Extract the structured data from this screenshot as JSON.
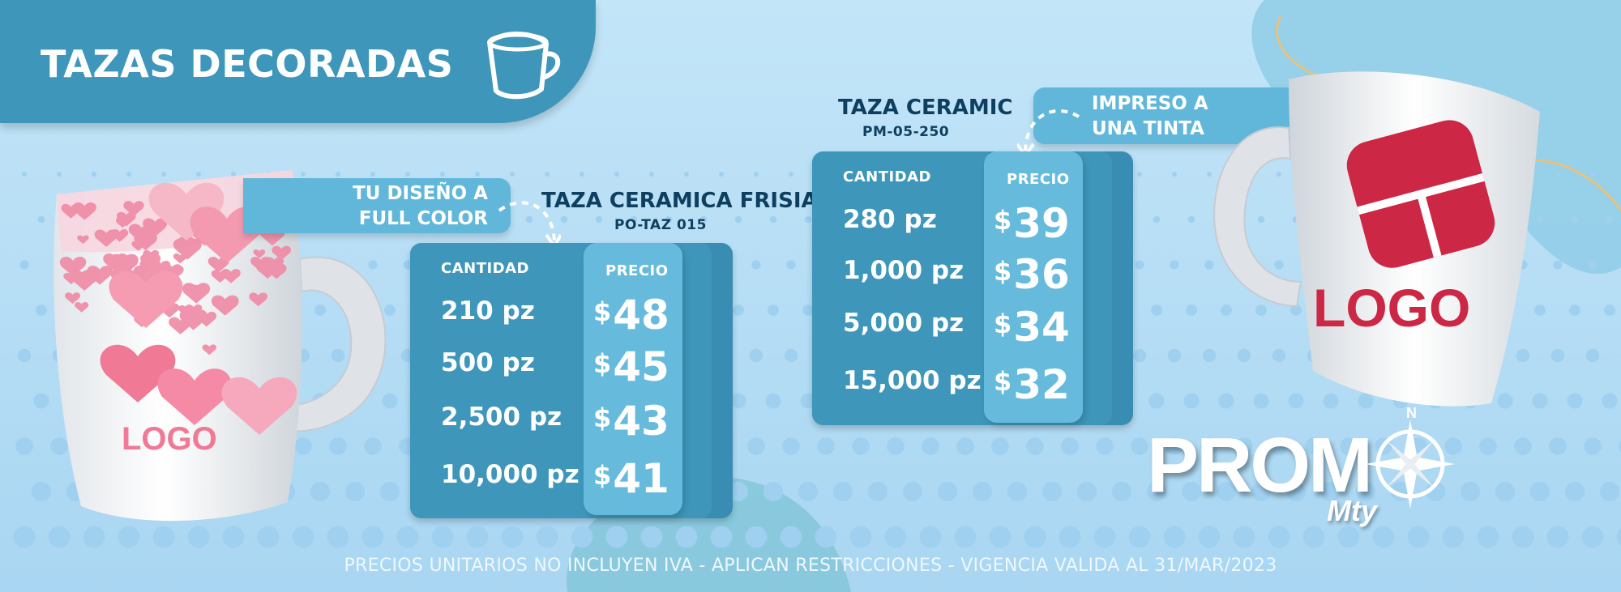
{
  "header": {
    "title": "TAZAS DECORADAS",
    "icon": "mug-icon"
  },
  "colors": {
    "background": "#b7def5",
    "band": "#3e97bb",
    "card": "#3e97bb",
    "price_column": "#66bbdd",
    "title_text": "#0e3f5f",
    "logo_red": "#cc2744"
  },
  "left_mug": {
    "logo_text": "LOGO",
    "decoration": "pink hearts"
  },
  "right_mug": {
    "logo_text": "LOGO"
  },
  "callouts": {
    "full_color": {
      "line1": "TU DISEÑO A",
      "line2": "FULL COLOR"
    },
    "one_ink": {
      "line1": "IMPRESO A",
      "line2": "UNA TINTA"
    }
  },
  "products": [
    {
      "name": "TAZA CERAMICA FRISIA",
      "code": "PO-TAZ 015",
      "qty_header": "CANTIDAD",
      "price_header": "PRECIO",
      "rows": [
        {
          "qty": "210 pz",
          "currency": "$",
          "price": "48"
        },
        {
          "qty": "500 pz",
          "currency": "$",
          "price": "45"
        },
        {
          "qty": "2,500 pz",
          "currency": "$",
          "price": "43"
        },
        {
          "qty": "10,000 pz",
          "currency": "$",
          "price": "41"
        }
      ]
    },
    {
      "name": "TAZA CERAMIC",
      "code": "PM-05-250",
      "qty_header": "CANTIDAD",
      "price_header": "PRECIO",
      "rows": [
        {
          "qty": "280 pz",
          "currency": "$",
          "price": "39"
        },
        {
          "qty": "1,000 pz",
          "currency": "$",
          "price": "36"
        },
        {
          "qty": "5,000 pz",
          "currency": "$",
          "price": "34"
        },
        {
          "qty": "15,000 pz",
          "currency": "$",
          "price": "32"
        }
      ]
    }
  ],
  "brand": {
    "word": "PROM",
    "sub": "Mty",
    "compass_letter": "N",
    "compass_icon": "compass-icon"
  },
  "footer": {
    "note": "PRECIOS UNITARIOS NO INCLUYEN IVA - APLICAN RESTRICCIONES - VIGENCIA VALIDA AL 31/MAR/2023"
  }
}
